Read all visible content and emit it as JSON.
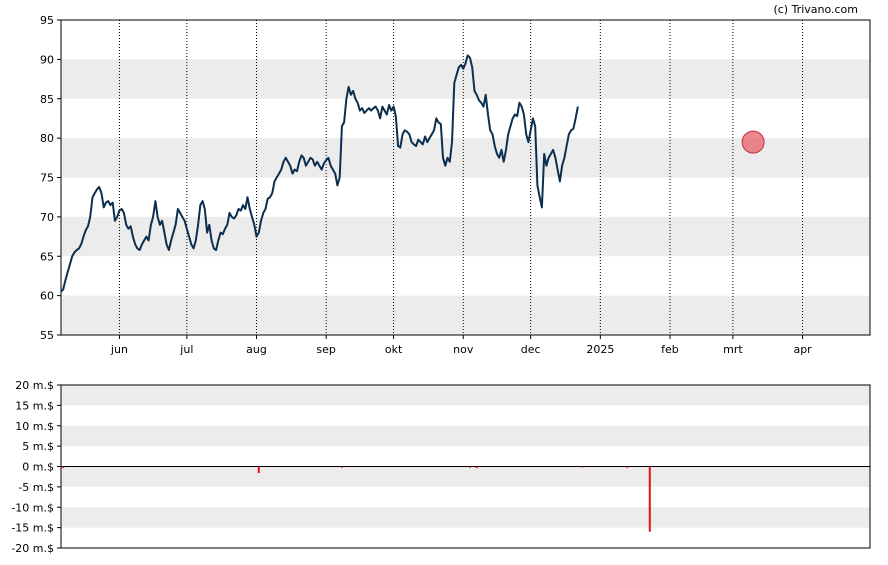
{
  "credit": "(c) Trivano.com",
  "colors": {
    "band": "#ececec",
    "price_line": "#0d2f4f",
    "marker_fill": "#e8606a",
    "marker_stroke": "#c0303a",
    "volume_bar": "#e0101a",
    "axis": "#000000"
  },
  "chart_data": [
    {
      "type": "line",
      "title": "",
      "xlabel": "",
      "ylabel": "",
      "ylim": [
        55,
        95
      ],
      "y_ticks": [
        "95",
        "90",
        "85",
        "80",
        "75",
        "70",
        "65",
        "60",
        "55"
      ],
      "x_ticks": [
        {
          "label": "jun",
          "day": 56
        },
        {
          "label": "jul",
          "day": 86
        },
        {
          "label": "aug",
          "day": 117
        },
        {
          "label": "sep",
          "day": 148
        },
        {
          "label": "okt",
          "day": 178
        },
        {
          "label": "nov",
          "day": 209
        },
        {
          "label": "dec",
          "day": 239
        },
        {
          "label": "2025",
          "day": 270
        },
        {
          "label": "feb",
          "day": 301
        },
        {
          "label": "mrt",
          "day": 329
        },
        {
          "label": "apr",
          "day": 360
        }
      ],
      "x_range_days": [
        30,
        390
      ],
      "grid": "vertical dotted lines at month ticks, alternating horizontal bands",
      "marker": {
        "day": 338,
        "value": 79.5
      },
      "series": [
        {
          "points": [
            [
              30,
              60.5
            ],
            [
              31,
              60.8
            ],
            [
              32,
              62
            ],
            [
              33,
              63
            ],
            [
              34,
              64
            ],
            [
              35,
              65
            ],
            [
              36,
              65.5
            ],
            [
              37,
              65.8
            ],
            [
              38,
              66
            ],
            [
              39,
              66.5
            ],
            [
              40,
              67.5
            ],
            [
              41,
              68.3
            ],
            [
              42,
              68.8
            ],
            [
              43,
              70
            ],
            [
              44,
              72.5
            ],
            [
              45,
              73
            ],
            [
              46,
              73.5
            ],
            [
              47,
              73.8
            ],
            [
              48,
              73
            ],
            [
              49,
              71.2
            ],
            [
              50,
              71.8
            ],
            [
              51,
              72
            ],
            [
              52,
              71.5
            ],
            [
              53,
              71.8
            ],
            [
              54,
              69.5
            ],
            [
              55,
              70
            ],
            [
              56,
              70.8
            ],
            [
              57,
              71
            ],
            [
              58,
              70.5
            ],
            [
              59,
              69
            ],
            [
              60,
              68.5
            ],
            [
              61,
              68.8
            ],
            [
              62,
              67.5
            ],
            [
              63,
              66.5
            ],
            [
              64,
              66
            ],
            [
              65,
              65.8
            ],
            [
              66,
              66.5
            ],
            [
              67,
              67
            ],
            [
              68,
              67.5
            ],
            [
              69,
              67
            ],
            [
              70,
              69
            ],
            [
              71,
              70
            ],
            [
              72,
              72
            ],
            [
              73,
              70
            ],
            [
              74,
              69
            ],
            [
              75,
              69.5
            ],
            [
              76,
              68
            ],
            [
              77,
              66.5
            ],
            [
              78,
              65.8
            ],
            [
              79,
              67
            ],
            [
              80,
              68
            ],
            [
              81,
              69
            ],
            [
              82,
              71
            ],
            [
              83,
              70.5
            ],
            [
              84,
              70
            ],
            [
              85,
              69.5
            ],
            [
              86,
              68.5
            ],
            [
              87,
              67.5
            ],
            [
              88,
              66.5
            ],
            [
              89,
              66
            ],
            [
              90,
              67
            ],
            [
              91,
              69
            ],
            [
              92,
              71.5
            ],
            [
              93,
              72
            ],
            [
              94,
              71
            ],
            [
              95,
              68
            ],
            [
              96,
              69
            ],
            [
              97,
              67
            ],
            [
              98,
              66
            ],
            [
              99,
              65.8
            ],
            [
              100,
              67
            ],
            [
              101,
              68
            ],
            [
              102,
              67.8
            ],
            [
              103,
              68.5
            ],
            [
              104,
              69
            ],
            [
              105,
              70.5
            ],
            [
              106,
              70
            ],
            [
              107,
              69.8
            ],
            [
              108,
              70.2
            ],
            [
              109,
              71
            ],
            [
              110,
              70.8
            ],
            [
              111,
              71.5
            ],
            [
              112,
              71
            ],
            [
              113,
              72.5
            ],
            [
              114,
              71
            ],
            [
              115,
              70
            ],
            [
              116,
              69
            ],
            [
              117,
              67.5
            ],
            [
              118,
              68
            ],
            [
              119,
              69.5
            ],
            [
              120,
              70.5
            ],
            [
              121,
              71
            ],
            [
              122,
              72.3
            ],
            [
              123,
              72.5
            ],
            [
              124,
              73
            ],
            [
              125,
              74.5
            ],
            [
              126,
              75
            ],
            [
              127,
              75.5
            ],
            [
              128,
              76
            ],
            [
              129,
              77
            ],
            [
              130,
              77.5
            ],
            [
              131,
              77
            ],
            [
              132,
              76.5
            ],
            [
              133,
              75.5
            ],
            [
              134,
              76
            ],
            [
              135,
              75.8
            ],
            [
              136,
              77
            ],
            [
              137,
              77.8
            ],
            [
              138,
              77.5
            ],
            [
              139,
              76.5
            ],
            [
              140,
              77
            ],
            [
              141,
              77.5
            ],
            [
              142,
              77.3
            ],
            [
              143,
              76.5
            ],
            [
              144,
              77
            ],
            [
              145,
              76.5
            ],
            [
              146,
              76
            ],
            [
              147,
              76.8
            ],
            [
              148,
              77.2
            ],
            [
              149,
              77.5
            ],
            [
              150,
              76.5
            ],
            [
              151,
              76
            ],
            [
              152,
              75.5
            ],
            [
              153,
              74
            ],
            [
              154,
              75
            ],
            [
              155,
              81.5
            ],
            [
              156,
              82
            ],
            [
              157,
              85
            ],
            [
              158,
              86.5
            ],
            [
              159,
              85.5
            ],
            [
              160,
              86
            ],
            [
              161,
              85
            ],
            [
              162,
              84.5
            ],
            [
              163,
              83.5
            ],
            [
              164,
              83.8
            ],
            [
              165,
              83.2
            ],
            [
              166,
              83.5
            ],
            [
              167,
              83.8
            ],
            [
              168,
              83.5
            ],
            [
              169,
              83.8
            ],
            [
              170,
              84
            ],
            [
              171,
              83.5
            ],
            [
              172,
              82.5
            ],
            [
              173,
              84
            ],
            [
              174,
              83.5
            ],
            [
              175,
              83
            ],
            [
              176,
              84.2
            ],
            [
              177,
              83.5
            ],
            [
              178,
              84
            ],
            [
              179,
              82.8
            ],
            [
              180,
              79
            ],
            [
              181,
              78.8
            ],
            [
              182,
              80.5
            ],
            [
              183,
              81
            ],
            [
              184,
              80.8
            ],
            [
              185,
              80.5
            ],
            [
              186,
              79.5
            ],
            [
              187,
              79.2
            ],
            [
              188,
              79
            ],
            [
              189,
              79.8
            ],
            [
              190,
              79.5
            ],
            [
              191,
              79.2
            ],
            [
              192,
              80.2
            ],
            [
              193,
              79.5
            ],
            [
              194,
              80
            ],
            [
              195,
              80.5
            ],
            [
              196,
              81
            ],
            [
              197,
              82.5
            ],
            [
              198,
              82
            ],
            [
              199,
              81.8
            ],
            [
              200,
              77.5
            ],
            [
              201,
              76.5
            ],
            [
              202,
              77.5
            ],
            [
              203,
              77
            ],
            [
              204,
              79.5
            ],
            [
              205,
              87
            ],
            [
              206,
              88
            ],
            [
              207,
              89
            ],
            [
              208,
              89.3
            ],
            [
              209,
              88.8
            ],
            [
              210,
              89.5
            ],
            [
              211,
              90.5
            ],
            [
              212,
              90.2
            ],
            [
              213,
              89
            ],
            [
              214,
              86
            ],
            [
              215,
              85.5
            ],
            [
              216,
              84.8
            ],
            [
              217,
              84.5
            ],
            [
              218,
              84
            ],
            [
              219,
              85.5
            ],
            [
              220,
              83
            ],
            [
              221,
              81
            ],
            [
              222,
              80.5
            ],
            [
              223,
              79
            ],
            [
              224,
              78
            ],
            [
              225,
              77.5
            ],
            [
              226,
              78.5
            ],
            [
              227,
              77
            ],
            [
              228,
              78.5
            ],
            [
              229,
              80.5
            ],
            [
              230,
              81.5
            ],
            [
              231,
              82.5
            ],
            [
              232,
              83
            ],
            [
              233,
              82.8
            ],
            [
              234,
              84.5
            ],
            [
              235,
              84
            ],
            [
              236,
              83
            ],
            [
              237,
              80.5
            ],
            [
              238,
              79.5
            ],
            [
              239,
              81
            ],
            [
              240,
              82.5
            ],
            [
              241,
              81.5
            ],
            [
              242,
              74
            ],
            [
              243,
              72.5
            ],
            [
              244,
              71.2
            ],
            [
              245,
              78
            ],
            [
              246,
              76.5
            ],
            [
              247,
              77.5
            ],
            [
              248,
              78
            ],
            [
              249,
              78.5
            ],
            [
              250,
              77.5
            ],
            [
              251,
              76
            ],
            [
              252,
              74.5
            ],
            [
              253,
              76.5
            ],
            [
              254,
              77.5
            ],
            [
              255,
              79
            ],
            [
              256,
              80.5
            ],
            [
              257,
              81
            ],
            [
              258,
              81.2
            ],
            [
              259,
              82.5
            ],
            [
              260,
              84
            ]
          ]
        }
      ]
    },
    {
      "type": "bar",
      "title": "",
      "xlabel": "",
      "ylabel": "",
      "ylim": [
        -20,
        20
      ],
      "y_ticks": [
        "20 m.$",
        "15 m.$",
        "10 m.$",
        "5 m.$",
        "0 m.$",
        "-5 m.$",
        "-10 m.$",
        "-15 m.$",
        "-20 m.$"
      ],
      "bars": [
        {
          "day": 31,
          "value": -0.4
        },
        {
          "day": 118,
          "value": -1.6
        },
        {
          "day": 155,
          "value": -0.3
        },
        {
          "day": 212,
          "value": -0.3
        },
        {
          "day": 215,
          "value": -0.4
        },
        {
          "day": 262,
          "value": -0.2
        },
        {
          "day": 282,
          "value": -0.3
        },
        {
          "day": 292,
          "value": -16
        }
      ]
    }
  ]
}
